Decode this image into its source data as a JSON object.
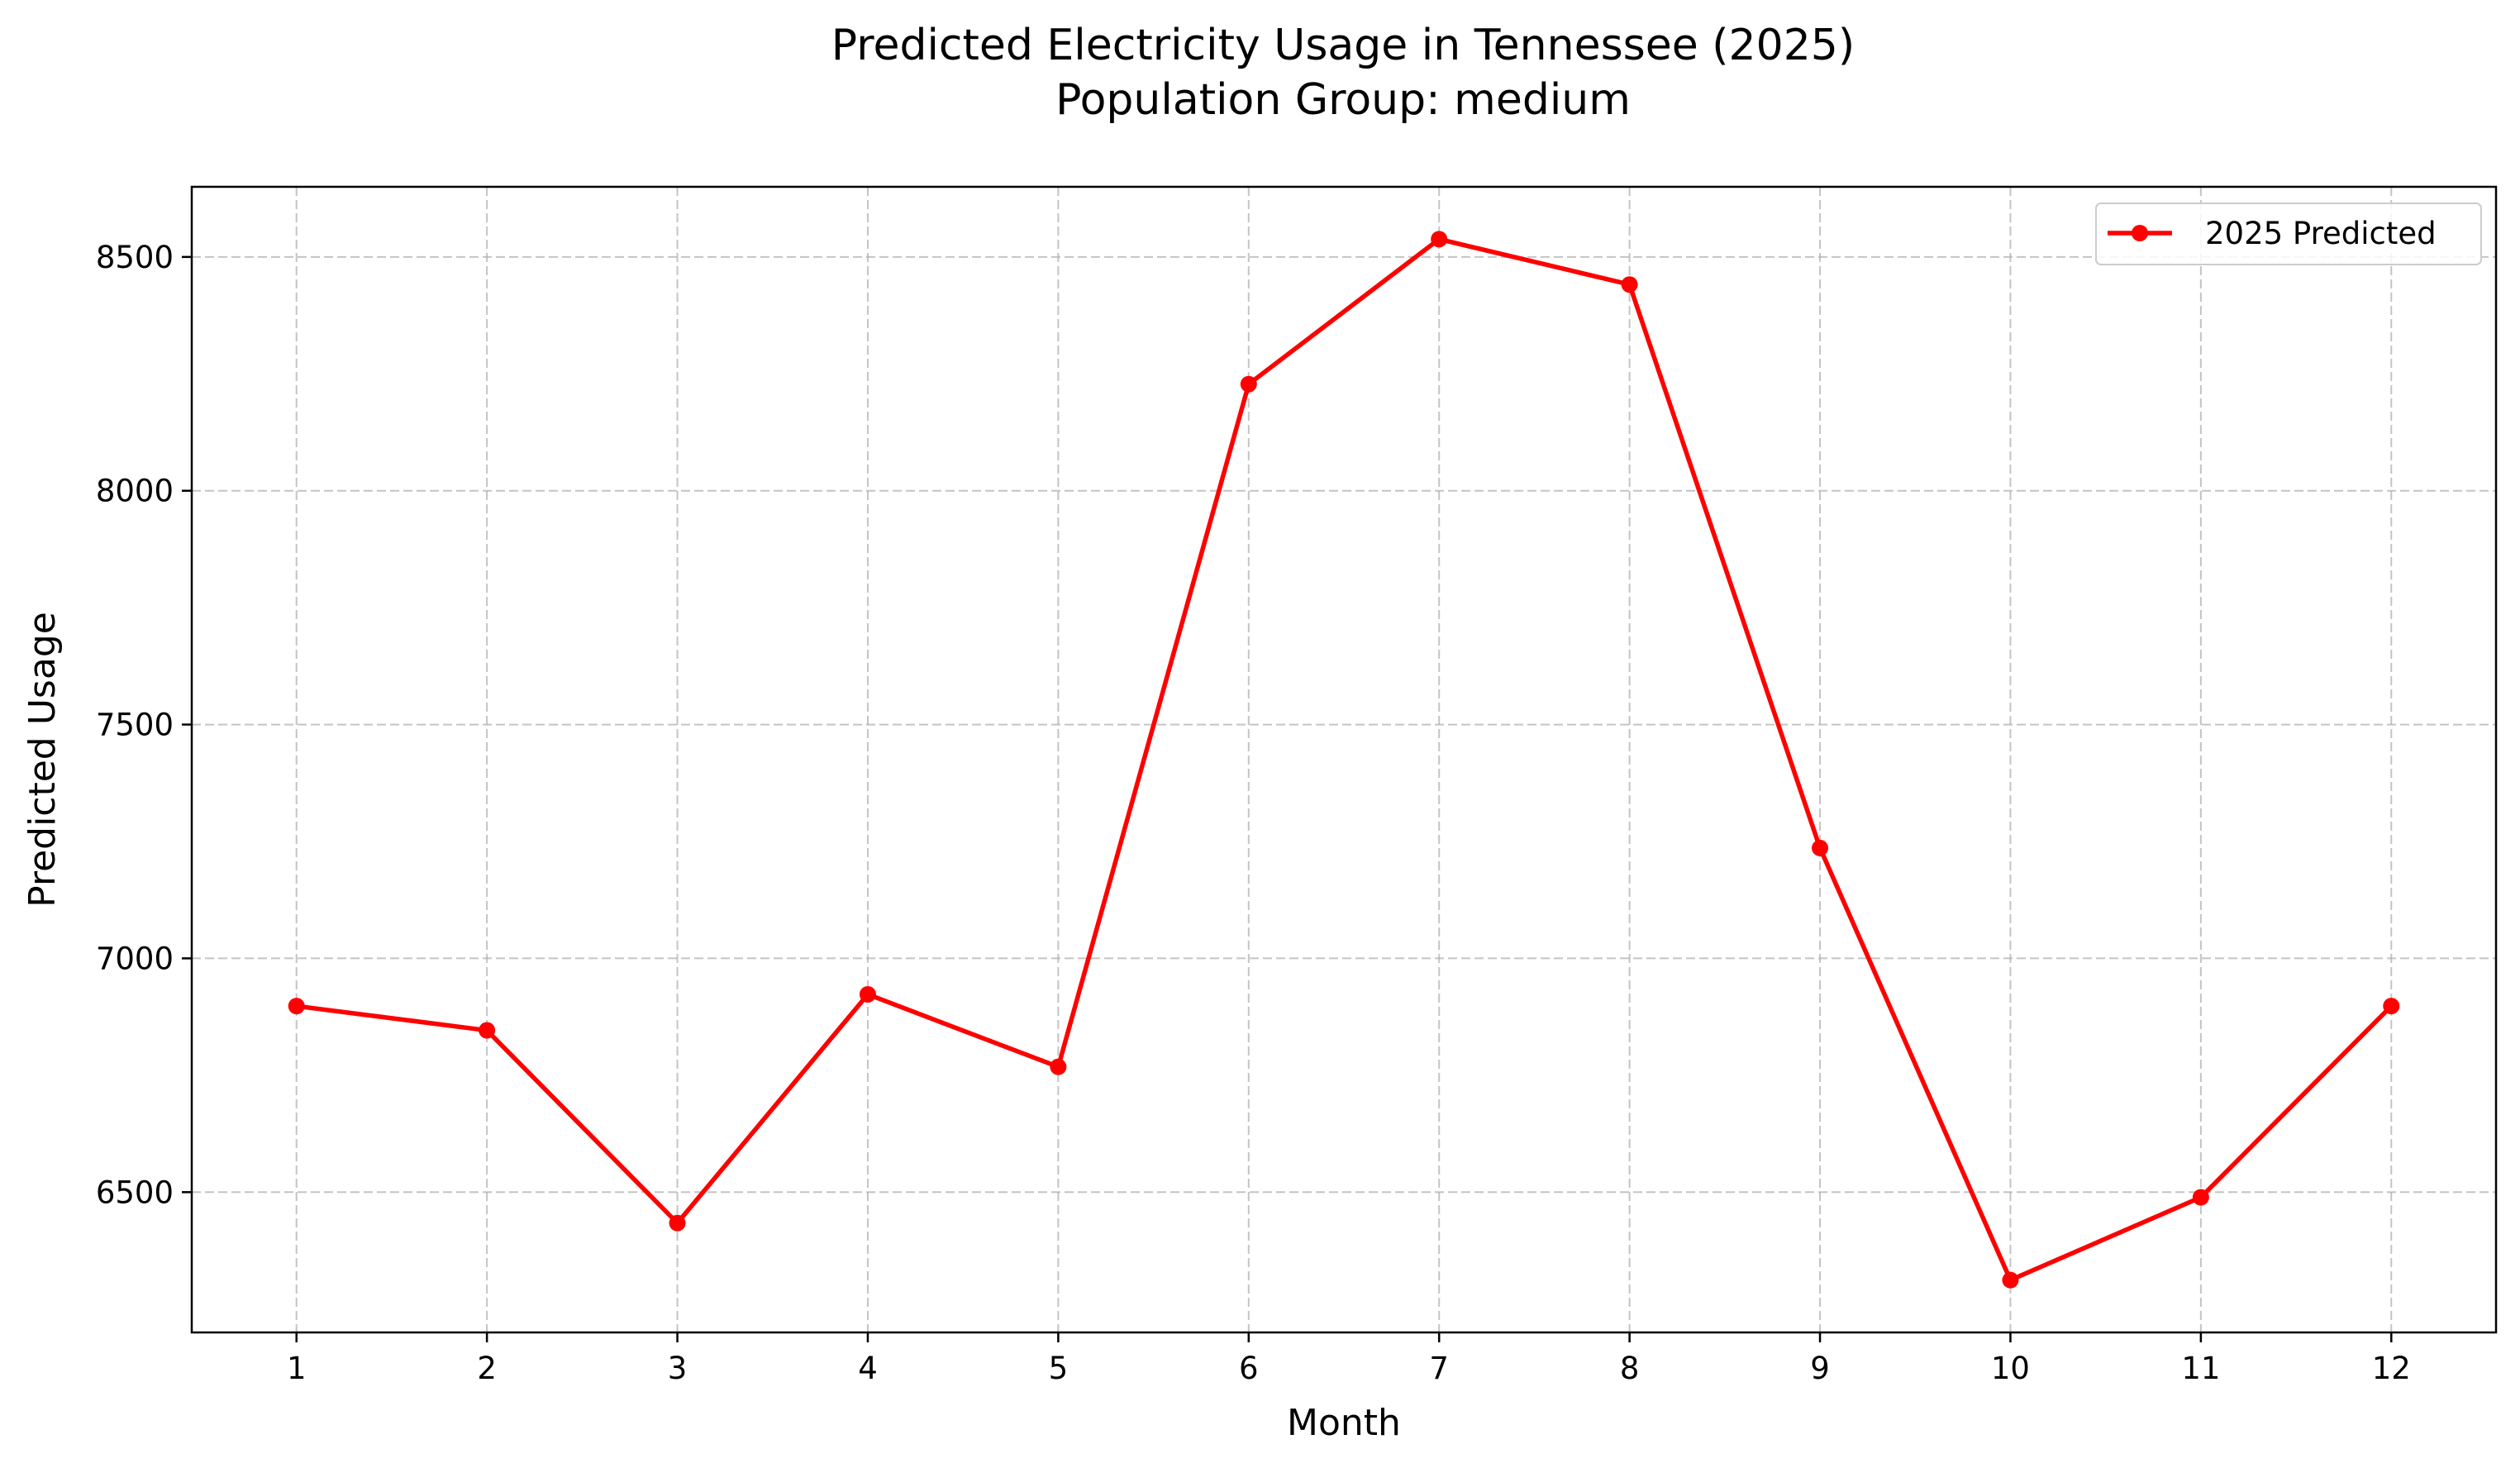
{
  "chart_data": {
    "type": "line",
    "title": "Predicted Electricity Usage in Tennessee (2025)",
    "subtitle": "Population Group: medium",
    "xlabel": "Month",
    "ylabel": "Predicted Usage",
    "x": [
      1,
      2,
      3,
      4,
      5,
      6,
      7,
      8,
      9,
      10,
      11,
      12
    ],
    "x_ticks": [
      "1",
      "2",
      "3",
      "4",
      "5",
      "6",
      "7",
      "8",
      "9",
      "10",
      "11",
      "12"
    ],
    "xlim": [
      0.45,
      12.55
    ],
    "ylim": [
      6200,
      8650
    ],
    "y_ticks": [
      6500,
      7000,
      7500,
      8000,
      8500
    ],
    "y_tick_labels": [
      "6500",
      "7000",
      "7500",
      "8000",
      "8500"
    ],
    "grid": true,
    "legend_position": "top-right",
    "series": [
      {
        "name": "2025 Predicted",
        "color": "#ff0000",
        "marker": "circle",
        "values": [
          6898,
          6846,
          6434,
          6923,
          6768,
          8228,
          8538,
          8441,
          7236,
          6312,
          6489,
          6898
        ]
      }
    ]
  }
}
